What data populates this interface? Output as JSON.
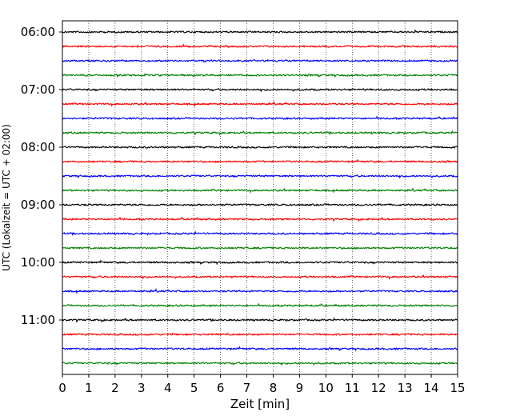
{
  "chart_data": {
    "type": "line",
    "title": "",
    "xlabel": "Zeit  [min]",
    "ylabel": "UTC (Lokalzeit = UTC + 02:00)",
    "xlim": [
      0,
      15
    ],
    "x_ticks": [
      0,
      1,
      2,
      3,
      4,
      5,
      6,
      7,
      8,
      9,
      10,
      11,
      12,
      13,
      14,
      15
    ],
    "y_tick_labels": [
      "06:00",
      "07:00",
      "08:00",
      "09:00",
      "10:00",
      "11:00"
    ],
    "trace_interval_minutes": 15,
    "trace_count": 24,
    "first_trace_utc": "06:00",
    "last_trace_utc": "11:45",
    "trace_colors": [
      "#000000",
      "#ff0000",
      "#0000ff",
      "#008000"
    ],
    "vertical_grid": "dotted",
    "legend": "none",
    "series_kind": "seismogram helicorder traces (one 15-minute trace per row)"
  }
}
